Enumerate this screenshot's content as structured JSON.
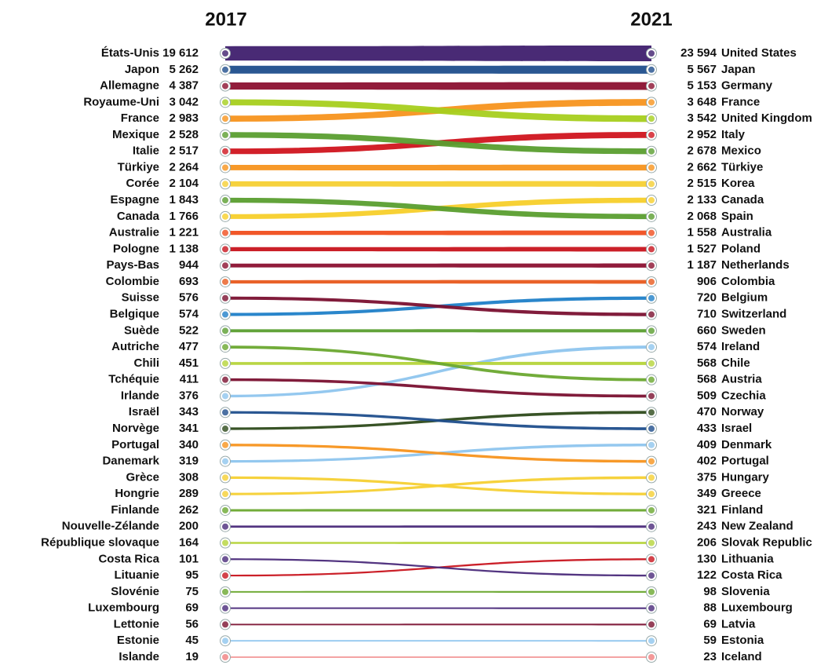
{
  "chart_data": {
    "type": "bump",
    "categories": [
      "2017",
      "2021"
    ],
    "series": [
      {
        "name": [
          "États-Unis",
          "United States"
        ],
        "color": "#3f1f6e",
        "values": [
          19612,
          23594
        ],
        "value_labels": [
          "19 612",
          "23 594"
        ]
      },
      {
        "name": [
          "Japon",
          "Japan"
        ],
        "color": "#1f4e8c",
        "values": [
          5262,
          5567
        ],
        "value_labels": [
          "5 262",
          "5 567"
        ]
      },
      {
        "name": [
          "Allemagne",
          "Germany"
        ],
        "color": "#8b1030",
        "values": [
          4387,
          5153
        ],
        "value_labels": [
          "4 387",
          "5 153"
        ]
      },
      {
        "name": [
          "Royaume-Uni",
          "United Kingdom"
        ],
        "color": "#a6cf1e",
        "values": [
          3042,
          3542
        ],
        "value_labels": [
          "3 042",
          "3 542"
        ]
      },
      {
        "name": [
          "France",
          "France"
        ],
        "color": "#f7941d",
        "values": [
          2983,
          3648
        ],
        "value_labels": [
          "2 983",
          "3 648"
        ]
      },
      {
        "name": [
          "Mexique",
          "Mexico"
        ],
        "color": "#5a9e2f",
        "values": [
          2528,
          2678
        ],
        "value_labels": [
          "2 528",
          "2 678"
        ]
      },
      {
        "name": [
          "Italie",
          "Italy"
        ],
        "color": "#d0141e",
        "values": [
          2517,
          2952
        ],
        "value_labels": [
          "2 517",
          "2 952"
        ]
      },
      {
        "name": [
          "Türkiye",
          "Türkiye"
        ],
        "color": "#f7941d",
        "values": [
          2264,
          2662
        ],
        "value_labels": [
          "2 264",
          "2 662"
        ]
      },
      {
        "name": [
          "Corée",
          "Korea"
        ],
        "color": "#f5d033",
        "values": [
          2104,
          2515
        ],
        "value_labels": [
          "2 104",
          "2 515"
        ]
      },
      {
        "name": [
          "Espagne",
          "Spain"
        ],
        "color": "#5a9e2f",
        "values": [
          1843,
          2068
        ],
        "value_labels": [
          "1 843",
          "2 068"
        ]
      },
      {
        "name": [
          "Canada",
          "Canada"
        ],
        "color": "#f7cf2a",
        "values": [
          1766,
          2133
        ],
        "value_labels": [
          "1 766",
          "2 133"
        ]
      },
      {
        "name": [
          "Australie",
          "Australia"
        ],
        "color": "#f04e1e",
        "values": [
          1221,
          1558
        ],
        "value_labels": [
          "1 221",
          "1 558"
        ]
      },
      {
        "name": [
          "Pologne",
          "Poland"
        ],
        "color": "#c8141e",
        "values": [
          1138,
          1527
        ],
        "value_labels": [
          "1 138",
          "1 527"
        ]
      },
      {
        "name": [
          "Pays-Bas",
          "Netherlands"
        ],
        "color": "#8b1030",
        "values": [
          944,
          1187
        ],
        "value_labels": [
          "944",
          "1 187"
        ]
      },
      {
        "name": [
          "Colombie",
          "Colombia"
        ],
        "color": "#e85a1e",
        "values": [
          693,
          906
        ]
      },
      {
        "name": [
          "Suisse",
          "Switzerland"
        ],
        "color": "#7a1030",
        "values": [
          576,
          710
        ]
      },
      {
        "name": [
          "Belgique",
          "Belgium"
        ],
        "color": "#1f7fc8",
        "values": [
          574,
          720
        ]
      },
      {
        "name": [
          "Suède",
          "Sweden"
        ],
        "color": "#5a9e2f",
        "values": [
          522,
          660
        ]
      },
      {
        "name": [
          "Autriche",
          "Austria"
        ],
        "color": "#6aa82f",
        "values": [
          477,
          568
        ]
      },
      {
        "name": [
          "Chili",
          "Chile"
        ],
        "color": "#b5d43a",
        "values": [
          451,
          568
        ]
      },
      {
        "name": [
          "Tchéquie",
          "Czechia"
        ],
        "color": "#7a1030",
        "values": [
          411,
          509
        ]
      },
      {
        "name": [
          "Irlande",
          "Ireland"
        ],
        "color": "#8ec5ee",
        "values": [
          376,
          574
        ]
      },
      {
        "name": [
          "Israël",
          "Israel"
        ],
        "color": "#1f4e8c",
        "values": [
          343,
          433
        ]
      },
      {
        "name": [
          "Norvège",
          "Norway"
        ],
        "color": "#2d4a1a",
        "values": [
          341,
          470
        ]
      },
      {
        "name": [
          "Portugal",
          "Portugal"
        ],
        "color": "#f7941d",
        "values": [
          340,
          402
        ]
      },
      {
        "name": [
          "Danemark",
          "Denmark"
        ],
        "color": "#8ec5ee",
        "values": [
          319,
          409
        ]
      },
      {
        "name": [
          "Grèce",
          "Greece"
        ],
        "color": "#f5d033",
        "values": [
          308,
          349
        ]
      },
      {
        "name": [
          "Hongrie",
          "Hungary"
        ],
        "color": "#f5d033",
        "values": [
          289,
          375
        ]
      },
      {
        "name": [
          "Finlande",
          "Finland"
        ],
        "color": "#6aa82f",
        "values": [
          262,
          321
        ]
      },
      {
        "name": [
          "Nouvelle-Zélande",
          "New Zealand"
        ],
        "color": "#4a2a7a",
        "values": [
          200,
          243
        ]
      },
      {
        "name": [
          "République slovaque",
          "Slovak Republic"
        ],
        "color": "#b5d43a",
        "values": [
          164,
          206
        ]
      },
      {
        "name": [
          "Costa Rica",
          "Costa Rica"
        ],
        "color": "#4a2a7a",
        "values": [
          101,
          122
        ]
      },
      {
        "name": [
          "Lituanie",
          "Lithuania"
        ],
        "color": "#c8141e",
        "values": [
          95,
          130
        ]
      },
      {
        "name": [
          "Slovénie",
          "Slovenia"
        ],
        "color": "#6aa82f",
        "values": [
          75,
          98
        ]
      },
      {
        "name": [
          "Luxembourg",
          "Luxembourg"
        ],
        "color": "#4a2a7a",
        "values": [
          69,
          88
        ]
      },
      {
        "name": [
          "Lettonie",
          "Latvia"
        ],
        "color": "#7a1030",
        "values": [
          56,
          69
        ]
      },
      {
        "name": [
          "Estonie",
          "Estonia"
        ],
        "color": "#8ec5ee",
        "values": [
          45,
          59
        ]
      },
      {
        "name": [
          "Islande",
          "Iceland"
        ],
        "color": "#f08080",
        "values": [
          19,
          23
        ]
      }
    ]
  }
}
